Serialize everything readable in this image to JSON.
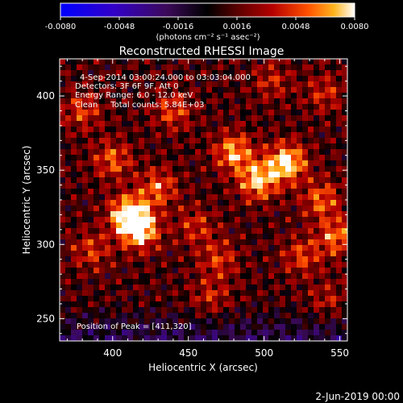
{
  "chart_data": {
    "type": "heatmap",
    "title": "Reconstructed RHESSI Image",
    "xlabel": "Heliocentric X (arcsec)",
    "ylabel": "Heliocentric Y (arcsec)",
    "xlim": [
      365,
      555
    ],
    "ylim": [
      235,
      425
    ],
    "x_ticks": [
      400,
      450,
      500,
      550
    ],
    "y_ticks": [
      250,
      300,
      350,
      400
    ],
    "x_tick_labels": [
      "400",
      "450",
      "500",
      "550"
    ],
    "y_tick_labels": [
      "250",
      "300",
      "350",
      "400"
    ],
    "colorbar": {
      "range": [
        -0.008,
        0.008
      ],
      "ticks": [
        -0.008,
        -0.0048,
        -0.0016,
        0.0016,
        0.0048,
        0.008
      ],
      "tick_labels": [
        "-0.0080",
        "-0.0048",
        "-0.0016",
        "0.0016",
        "0.0048",
        "0.0080"
      ],
      "unit_label": "(photons cm⁻² s⁻¹ asec⁻²)"
    },
    "annotations": [
      "4-Sep-2014 03:00:24.000 to 03:03:04.000",
      "Detectors: 3F 6F 9F, Att 0",
      "Energy Range: 6.0 - 12.0 keV",
      "Clean     Total counts: 5.84E+03"
    ],
    "peak_label": "Position of Peak = [411,320]",
    "peak": [
      411,
      320
    ],
    "sources": [
      {
        "x": 515,
        "y": 355,
        "intensity": 0.0072
      },
      {
        "x": 496,
        "y": 343,
        "intensity": 0.0062
      },
      {
        "x": 480,
        "y": 362,
        "intensity": 0.0055
      },
      {
        "x": 411,
        "y": 320,
        "intensity": 0.0078
      },
      {
        "x": 418,
        "y": 309,
        "intensity": 0.0062
      },
      {
        "x": 430,
        "y": 338,
        "intensity": 0.0042
      },
      {
        "x": 400,
        "y": 357,
        "intensity": 0.004
      },
      {
        "x": 440,
        "y": 390,
        "intensity": 0.0036
      },
      {
        "x": 538,
        "y": 330,
        "intensity": 0.0042
      },
      {
        "x": 548,
        "y": 305,
        "intensity": 0.0046
      },
      {
        "x": 525,
        "y": 292,
        "intensity": 0.0034
      },
      {
        "x": 470,
        "y": 290,
        "intensity": 0.0032
      },
      {
        "x": 455,
        "y": 312,
        "intensity": 0.003
      },
      {
        "x": 386,
        "y": 296,
        "intensity": 0.0032
      },
      {
        "x": 380,
        "y": 390,
        "intensity": 0.0034
      },
      {
        "x": 505,
        "y": 410,
        "intensity": 0.0026
      },
      {
        "x": 540,
        "y": 402,
        "intensity": 0.0028
      },
      {
        "x": 465,
        "y": 265,
        "intensity": 0.0026
      },
      {
        "x": 542,
        "y": 262,
        "intensity": 0.0022
      }
    ]
  },
  "footer": {
    "timestamp": "2-Jun-2019 00:00"
  }
}
